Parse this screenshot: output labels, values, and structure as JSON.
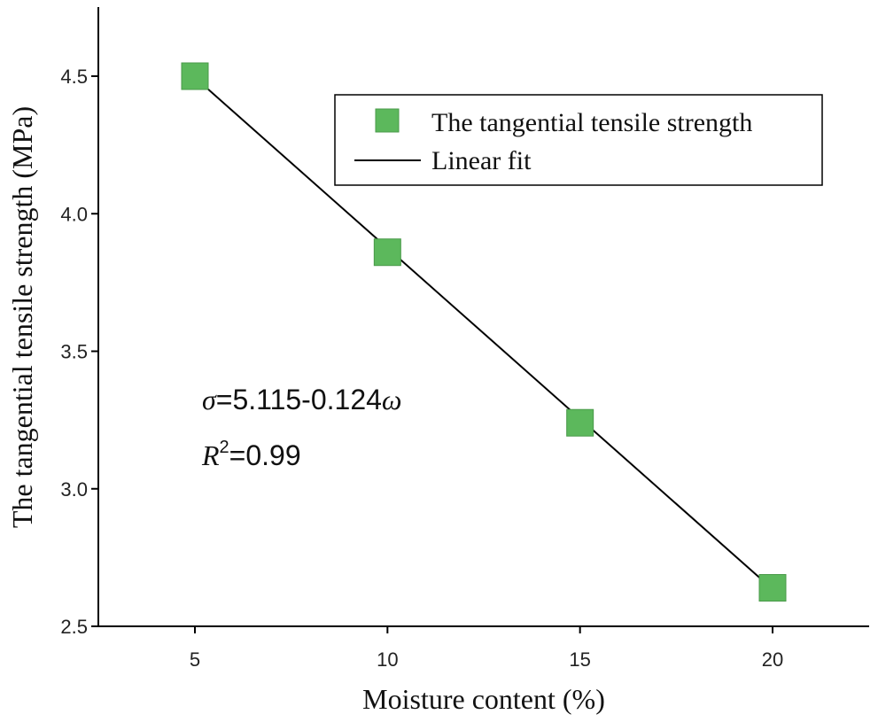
{
  "chart_data": {
    "type": "scatter",
    "xlabel": "Moisture content (%)",
    "ylabel": "The tangential tensile strength (MPa)",
    "xlim": [
      2.5,
      22.5
    ],
    "ylim": [
      2.5,
      4.8
    ],
    "xticks": [
      5,
      10,
      15,
      20
    ],
    "yticks": [
      2.5,
      3.0,
      3.5,
      4.0,
      4.5
    ],
    "xtick_labels": [
      "5",
      "10",
      "15",
      "20"
    ],
    "ytick_labels": [
      "2.5",
      "3.0",
      "3.5",
      "4.0",
      "4.5"
    ],
    "grid": false,
    "legend_position": "top-right",
    "series": [
      {
        "name": "The tangential tensile strength",
        "marker": "square",
        "color": "#5cb85c",
        "x": [
          5,
          10,
          15,
          20
        ],
        "y": [
          4.5,
          3.86,
          3.24,
          2.64
        ]
      }
    ],
    "fit": {
      "name": "Linear fit",
      "color": "#000000",
      "x_range": [
        5,
        20
      ],
      "intercept": 5.115,
      "slope": -0.124
    },
    "annotation": {
      "sigma": "σ",
      "equation": "=5.115-0.124",
      "omega": "ω",
      "r": "R",
      "r_sup": "2",
      "r_value": "=0.99"
    }
  }
}
